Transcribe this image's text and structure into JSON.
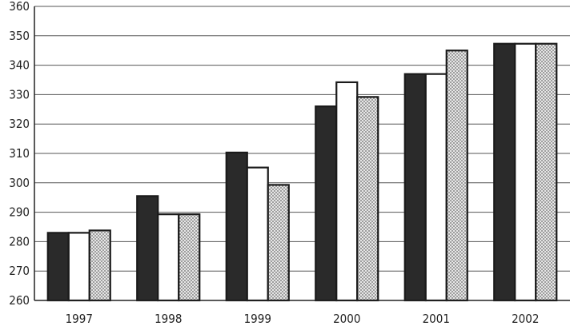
{
  "chart_data": {
    "type": "bar",
    "categories": [
      "1997",
      "1998",
      "1999",
      "2000",
      "2001",
      "2002"
    ],
    "series": [
      {
        "values": [
          283,
          295.5,
          310.3,
          326,
          337,
          347.3
        ]
      },
      {
        "values": [
          283,
          289.3,
          305.2,
          334.2,
          337,
          347.3
        ]
      },
      {
        "values": [
          283.8,
          289.3,
          299.3,
          329.2,
          345,
          347.3
        ]
      }
    ],
    "series_styles": [
      "dark",
      "white",
      "dotted"
    ],
    "colors": {
      "dark": "#2a2a2a",
      "white": "#ffffff",
      "dotted_fill": "#c8c8c8",
      "outline": "#1a1a1a"
    },
    "ylim": [
      260,
      360
    ],
    "y_ticks": [
      "260",
      "270",
      "280",
      "290",
      "300",
      "310",
      "320",
      "330",
      "340",
      "350",
      "360"
    ],
    "grid": true,
    "legend": "none",
    "title": "",
    "xlabel": "",
    "ylabel": ""
  }
}
